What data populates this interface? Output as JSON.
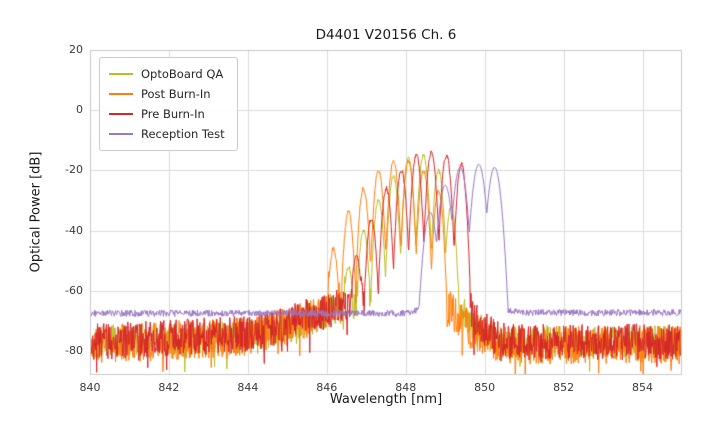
{
  "chart_data": {
    "type": "line",
    "title": "D4401 V20156 Ch. 6",
    "xlabel": "Wavelength [nm]",
    "ylabel": "Optical Power [dB]",
    "xlim": [
      840,
      855
    ],
    "ylim": [
      -88,
      20
    ],
    "xticks": [
      840,
      842,
      844,
      846,
      848,
      850,
      852,
      854
    ],
    "yticks": [
      20,
      0,
      -20,
      -40,
      -60,
      -80
    ],
    "grid": true,
    "grid_color": "#dcdcdc",
    "spine_color": "#c9c9c9",
    "legend_position": "upper left",
    "series": [
      {
        "name": "OptoBoard QA",
        "color": "#bcbd22",
        "seed": 101,
        "noise_amp": 5.5,
        "spiky": true,
        "peak_width": 0.035,
        "pedestal": [
          [
            840,
            -77
          ],
          [
            844.2,
            -75
          ],
          [
            845.2,
            -71
          ],
          [
            846.2,
            -66
          ],
          [
            846.6,
            -64
          ],
          [
            849.0,
            -63
          ],
          [
            849.4,
            -67
          ],
          [
            849.9,
            -73
          ],
          [
            850.4,
            -77
          ],
          [
            855,
            -77
          ]
        ],
        "peaks": [
          [
            846.55,
            -52
          ],
          [
            846.93,
            -40
          ],
          [
            847.31,
            -30
          ],
          [
            847.69,
            -22
          ],
          [
            848.07,
            -16
          ],
          [
            848.45,
            -15
          ],
          [
            848.83,
            -20
          ],
          [
            849.15,
            -32
          ]
        ]
      },
      {
        "name": "Post Burn-In",
        "color": "#ff7f0e",
        "seed": 202,
        "noise_amp": 6.5,
        "spiky": true,
        "peak_width": 0.035,
        "pedestal": [
          [
            840,
            -78
          ],
          [
            844.2,
            -75
          ],
          [
            845.2,
            -71
          ],
          [
            846.0,
            -66
          ],
          [
            846.4,
            -64
          ],
          [
            848.8,
            -64
          ],
          [
            849.3,
            -68
          ],
          [
            849.8,
            -74
          ],
          [
            850.3,
            -78
          ],
          [
            855,
            -78
          ]
        ],
        "peaks": [
          [
            846.17,
            -46
          ],
          [
            846.55,
            -34
          ],
          [
            846.93,
            -26
          ],
          [
            847.31,
            -20
          ],
          [
            847.69,
            -17
          ],
          [
            848.07,
            -17
          ],
          [
            848.45,
            -20
          ],
          [
            848.83,
            -27
          ]
        ]
      },
      {
        "name": "Pre Burn-In",
        "color": "#d62728",
        "seed": 303,
        "noise_amp": 6.0,
        "spiky": true,
        "peak_width": 0.035,
        "pedestal": [
          [
            840,
            -77
          ],
          [
            844.2,
            -74
          ],
          [
            845.2,
            -70
          ],
          [
            846.2,
            -66
          ],
          [
            846.8,
            -63
          ],
          [
            849.4,
            -62
          ],
          [
            849.7,
            -68
          ],
          [
            850.2,
            -75
          ],
          [
            850.6,
            -77
          ],
          [
            855,
            -77
          ]
        ],
        "peaks": [
          [
            846.75,
            -48
          ],
          [
            847.13,
            -36
          ],
          [
            847.51,
            -26
          ],
          [
            847.89,
            -20
          ],
          [
            848.27,
            -15
          ],
          [
            848.65,
            -14
          ],
          [
            849.03,
            -15
          ],
          [
            849.41,
            -18
          ]
        ]
      },
      {
        "name": "Reception Test",
        "color": "#9b77c4",
        "seed": 404,
        "noise_amp": 1.1,
        "spiky": false,
        "peak_width": 0.05,
        "pedestal": [
          [
            840,
            -67.5
          ],
          [
            848.0,
            -67.5
          ],
          [
            848.4,
            -66.2
          ],
          [
            850.6,
            -66.2
          ],
          [
            850.9,
            -67.3
          ],
          [
            855,
            -67.3
          ]
        ],
        "peaks": [
          [
            848.62,
            -34
          ],
          [
            849.0,
            -25
          ],
          [
            849.38,
            -19
          ],
          [
            849.85,
            -18
          ],
          [
            850.25,
            -19
          ]
        ]
      }
    ]
  }
}
